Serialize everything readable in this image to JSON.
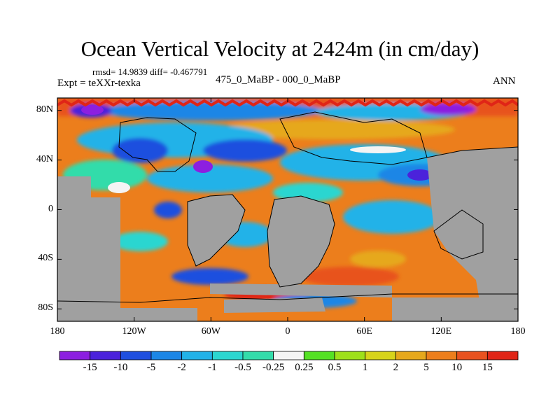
{
  "title": "Ocean Vertical Velocity at 2424m (in cm/day)",
  "stats": "rmsd= 14.9839 diff= -0.467791",
  "experiment": "Expt = teXXr-texka",
  "period": "475_0_MaBP - 000_0_MaBP",
  "season": "ANN",
  "map": {
    "lat_ticks": [
      "80N",
      "40N",
      "0",
      "40S",
      "80S"
    ],
    "lat_values": [
      80,
      40,
      0,
      -40,
      -80
    ],
    "lon_ticks": [
      "180",
      "120W",
      "60W",
      "0",
      "60E",
      "120E",
      "180"
    ],
    "lon_values": [
      -180,
      -120,
      -60,
      0,
      60,
      120,
      180
    ],
    "colors": {
      "land": "#a0a0a0",
      "frame": "#000000"
    }
  },
  "colorbar": {
    "labels": [
      "-15",
      "-10",
      "-5",
      "-2",
      "-1",
      "-0.5",
      "-0.25",
      "0.25",
      "0.5",
      "1",
      "2",
      "5",
      "10",
      "15"
    ],
    "colors": [
      "#8c1fe0",
      "#4b22db",
      "#1f4fdf",
      "#1c86e6",
      "#22b2e8",
      "#2bd6d0",
      "#33dcaa",
      "#f4f4f4",
      "#54e124",
      "#9ee01a",
      "#d7d41a",
      "#e6a81c",
      "#ec7e1c",
      "#e8521f",
      "#e02517"
    ]
  }
}
